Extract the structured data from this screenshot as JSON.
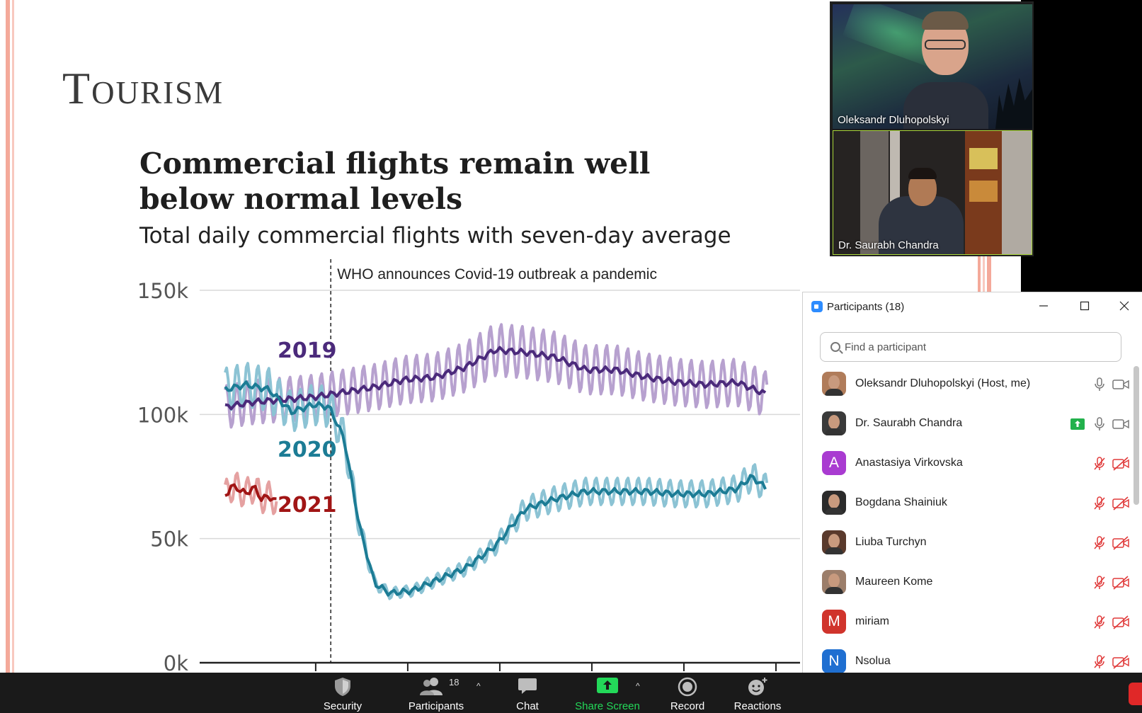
{
  "slide": {
    "title": "Tourism",
    "chart_title": "Commercial flights remain well below normal levels",
    "chart_subtitle": "Total daily commercial flights with seven-day average",
    "colors": {
      "stripe": "#f4a99a",
      "c2019": "#4b2a7b",
      "c2019_light": "#b7a1cf",
      "c2020": "#1c7c95",
      "c2020_light": "#8cc3d4",
      "c2021": "#a11515",
      "c2021_light": "#e5a1a1"
    }
  },
  "chart_data": {
    "type": "line",
    "title": "Commercial flights remain well below normal levels",
    "subtitle": "Total daily commercial flights with seven-day average",
    "ylim": [
      0,
      150000
    ],
    "yticks": [
      "0k",
      "50k",
      "100k",
      "150k"
    ],
    "x_unit": "day of year",
    "xlim": [
      1,
      366
    ],
    "annotation": {
      "text": "WHO announces Covid-19 outbreak a pandemic",
      "x": 71
    },
    "series": [
      {
        "name": "2019",
        "x": [
          1,
          20,
          40,
          60,
          80,
          100,
          120,
          140,
          160,
          180,
          200,
          220,
          240,
          260,
          280,
          300,
          320,
          340,
          360
        ],
        "values": [
          103000,
          105000,
          106000,
          107000,
          109000,
          111000,
          114000,
          115000,
          119000,
          126000,
          125000,
          123000,
          118000,
          118000,
          115000,
          113000,
          112000,
          113000,
          108000
        ]
      },
      {
        "name": "2020",
        "x": [
          1,
          15,
          30,
          45,
          60,
          70,
          80,
          90,
          100,
          110,
          125,
          140,
          160,
          180,
          200,
          220,
          240,
          260,
          280,
          300,
          320,
          340,
          350,
          360
        ],
        "values": [
          110000,
          112000,
          110000,
          101000,
          104000,
          103000,
          90000,
          55000,
          32000,
          28000,
          29000,
          33000,
          38000,
          47000,
          62000,
          66000,
          69000,
          69000,
          69000,
          68000,
          68000,
          70000,
          75000,
          70000
        ]
      },
      {
        "name": "2021",
        "x": [
          1,
          5,
          10,
          15,
          20,
          25,
          30,
          35
        ],
        "values": [
          67000,
          71000,
          70000,
          68000,
          71000,
          66000,
          67000,
          65000
        ]
      }
    ]
  },
  "videos": [
    {
      "name": "Oleksandr Dluhopolskyi"
    },
    {
      "name": "Dr. Saurabh Chandra"
    }
  ],
  "participants_panel": {
    "title": "Participants (18)",
    "search_placeholder": "Find a participant",
    "rows": [
      {
        "name": "Oleksandr Dluhopolskyi (Host, me)",
        "avatar": "photo",
        "avatar_color": "#b07c5a",
        "mic": "on",
        "video": "on",
        "sharing": false
      },
      {
        "name": "Dr. Saurabh Chandra",
        "avatar": "photo",
        "avatar_color": "#3a3a3a",
        "mic": "on",
        "video": "on",
        "sharing": true
      },
      {
        "name": "Anastasiya Virkovska",
        "avatar": "A",
        "avatar_color": "#a93bd1",
        "mic": "off",
        "video": "off",
        "sharing": false
      },
      {
        "name": "Bogdana Shainiuk",
        "avatar": "photo",
        "avatar_color": "#2b2b2b",
        "mic": "off",
        "video": "off",
        "sharing": false
      },
      {
        "name": "Liuba Turchyn",
        "avatar": "photo",
        "avatar_color": "#5a3a2c",
        "mic": "off",
        "video": "off",
        "sharing": false
      },
      {
        "name": "Maureen Kome",
        "avatar": "photo",
        "avatar_color": "#9c7e6a",
        "mic": "off",
        "video": "off",
        "sharing": false
      },
      {
        "name": "miriam",
        "avatar": "M",
        "avatar_color": "#d0342c",
        "mic": "off",
        "video": "off",
        "sharing": false
      },
      {
        "name": "Nsolua",
        "avatar": "N",
        "avatar_color": "#1f6fd1",
        "mic": "off",
        "video": "off",
        "sharing": false
      }
    ]
  },
  "toolbar": {
    "security": "Security",
    "participants": "Participants",
    "participant_count": "18",
    "chat": "Chat",
    "share_screen": "Share Screen",
    "record": "Record",
    "reactions": "Reactions",
    "share_color": "#23d959"
  }
}
